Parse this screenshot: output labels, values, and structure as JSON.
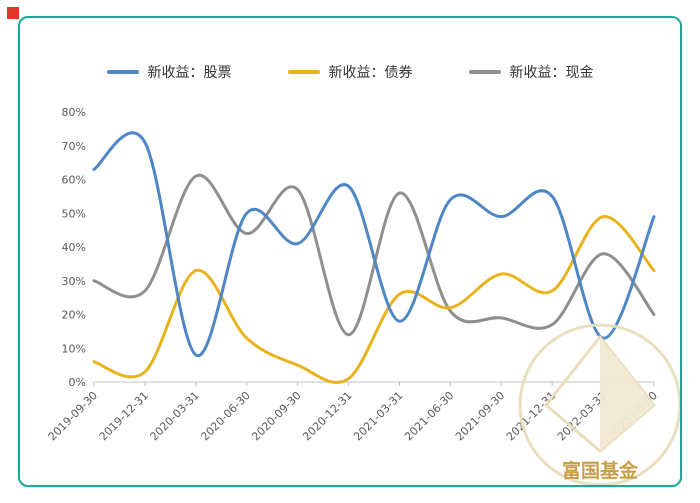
{
  "page": {
    "background": "#ffffff",
    "card_border_color": "#19a89c",
    "corner_square_color": "#e0352c"
  },
  "watermark": {
    "text": "富国基金",
    "color": "#c49b3f",
    "outline_color": "#e8ddbb"
  },
  "chart_data": {
    "type": "line",
    "x": [
      "2019-09-30",
      "2019-12-31",
      "2020-03-31",
      "2020-06-30",
      "2020-09-30",
      "2020-12-31",
      "2021-03-31",
      "2021-06-30",
      "2021-09-30",
      "2021-12-31",
      "2022-03-31",
      "2022-06-30"
    ],
    "series": [
      {
        "name": "新收益：股票",
        "color": "#4e86c6",
        "values": [
          63,
          71,
          8,
          50,
          41,
          58,
          18,
          54,
          49,
          55,
          13,
          49
        ]
      },
      {
        "name": "新收益：债券",
        "color": "#e8b31d",
        "values": [
          6,
          3,
          33,
          13,
          5,
          1,
          26,
          22,
          32,
          27,
          49,
          33
        ]
      },
      {
        "name": "新收益：现金",
        "color": "#8f8f8f",
        "values": [
          30,
          27,
          61,
          44,
          57,
          14,
          56,
          21,
          19,
          17,
          38,
          20
        ]
      }
    ],
    "y_ticks": [
      "0%",
      "10%",
      "20%",
      "30%",
      "40%",
      "50%",
      "60%",
      "70%",
      "80%"
    ],
    "ylim": [
      0,
      80
    ],
    "grid": false,
    "legend_position": "top",
    "xlabel": "",
    "ylabel": ""
  }
}
